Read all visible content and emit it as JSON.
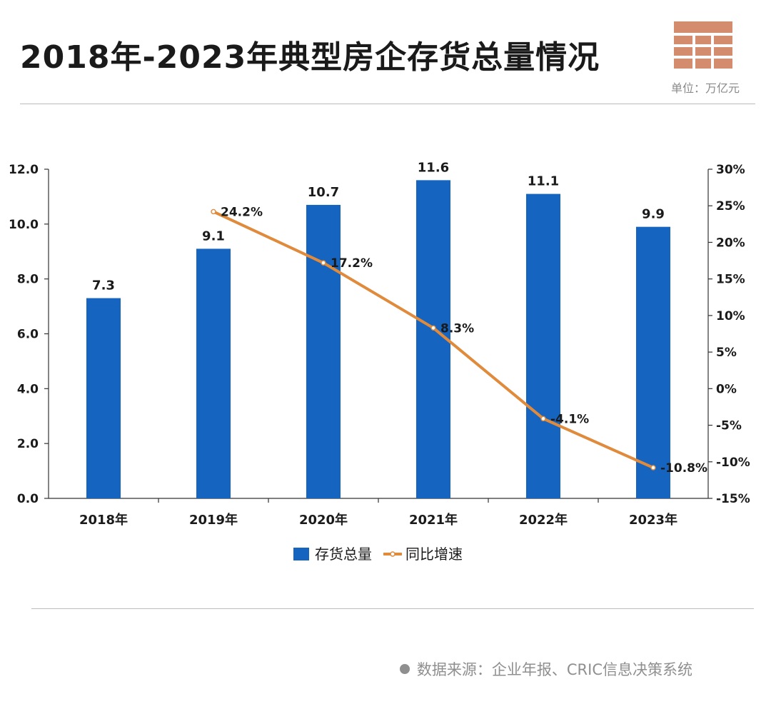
{
  "header": {
    "title": "2018年-2023年典型房企存货总量情况",
    "unit": "单位：万亿元"
  },
  "footer": {
    "source": "数据来源：企业年报、CRIC信息决策系统"
  },
  "colors": {
    "bar": "#1565c0",
    "line": "#e08a3c",
    "logo": "#d38c6d",
    "text": "#1a1a1a"
  },
  "chart_data": {
    "type": "bar",
    "categories": [
      "2018年",
      "2019年",
      "2020年",
      "2021年",
      "2022年",
      "2023年"
    ],
    "series": [
      {
        "name": "存货总量",
        "type": "bar",
        "axis": "left",
        "values": [
          7.3,
          9.1,
          10.7,
          11.6,
          11.1,
          9.9
        ],
        "labels": [
          "7.3",
          "9.1",
          "10.7",
          "11.6",
          "11.1",
          "9.9"
        ]
      },
      {
        "name": "同比增速",
        "type": "line",
        "axis": "right",
        "values": [
          null,
          24.2,
          17.2,
          8.3,
          -4.1,
          -10.8
        ],
        "labels": [
          "",
          "24.2%",
          "17.2%",
          "8.3%",
          "-4.1%",
          "-10.8%"
        ]
      }
    ],
    "y_left": {
      "min": 0,
      "max": 12,
      "ticks": [
        "0.0",
        "2.0",
        "4.0",
        "6.0",
        "8.0",
        "10.0",
        "12.0"
      ]
    },
    "y_right": {
      "min": -15,
      "max": 30,
      "ticks": [
        "-15%",
        "-10%",
        "-5%",
        "0%",
        "5%",
        "10%",
        "15%",
        "20%",
        "25%",
        "30%"
      ]
    },
    "legend_position": "bottom-center",
    "grid": false
  }
}
